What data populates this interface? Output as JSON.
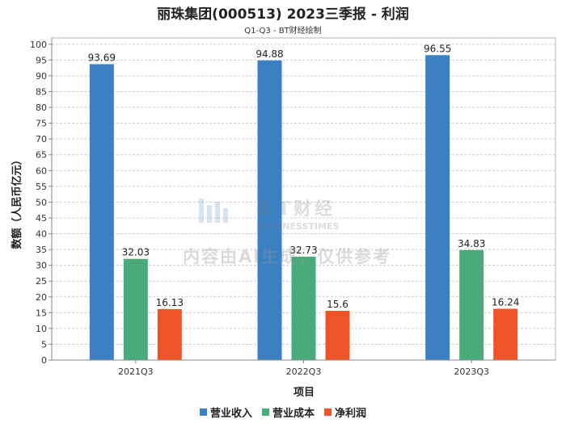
{
  "chart_data": {
    "type": "bar",
    "title": "丽珠集团(000513) 2023三季报 - 利润",
    "subtitle": "Q1-Q3 - BT财经绘制",
    "xlabel": "项目",
    "ylabel": "数额（人民币亿元）",
    "categories": [
      "2021Q3",
      "2022Q3",
      "2023Q3"
    ],
    "series": [
      {
        "name": "营业收入",
        "color": "#3a80c2",
        "values": [
          93.69,
          94.88,
          96.55
        ]
      },
      {
        "name": "营业成本",
        "color": "#4aaa79",
        "values": [
          32.03,
          32.73,
          34.83
        ]
      },
      {
        "name": "净利润",
        "color": "#ef5428",
        "values": [
          16.13,
          15.6,
          16.24
        ]
      }
    ],
    "data_labels": [
      [
        "93.69",
        "94.88",
        "96.55"
      ],
      [
        "32.03",
        "32.73",
        "34.83"
      ],
      [
        "16.13",
        "15.6",
        "16.24"
      ]
    ],
    "ylim": [
      0,
      102
    ],
    "yticks": [
      0,
      5,
      10,
      15,
      20,
      25,
      30,
      35,
      40,
      45,
      50,
      55,
      60,
      65,
      70,
      75,
      80,
      85,
      90,
      95,
      100
    ],
    "grid": true,
    "legend_position": "bottom"
  },
  "watermark": {
    "logo_text": "BT财经",
    "logo_subtext": "BUSINESSTIMES",
    "notice": "内容由AI生成，仅供参考"
  }
}
